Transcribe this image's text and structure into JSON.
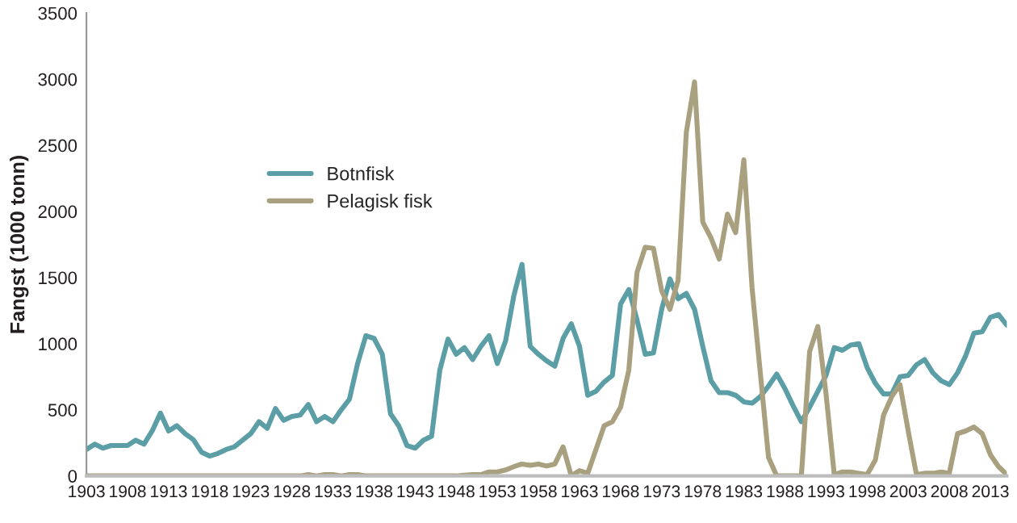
{
  "chart_data": {
    "type": "line",
    "ylabel": "Fangst (1000 tonn)",
    "x": [
      1903,
      1904,
      1905,
      1906,
      1907,
      1908,
      1909,
      1910,
      1911,
      1912,
      1913,
      1914,
      1915,
      1916,
      1917,
      1918,
      1919,
      1920,
      1921,
      1922,
      1923,
      1924,
      1925,
      1926,
      1927,
      1928,
      1929,
      1930,
      1931,
      1932,
      1933,
      1934,
      1935,
      1936,
      1937,
      1938,
      1939,
      1940,
      1941,
      1942,
      1943,
      1944,
      1945,
      1946,
      1947,
      1948,
      1949,
      1950,
      1951,
      1952,
      1953,
      1954,
      1955,
      1956,
      1957,
      1958,
      1959,
      1960,
      1961,
      1962,
      1963,
      1964,
      1965,
      1966,
      1967,
      1968,
      1969,
      1970,
      1971,
      1972,
      1973,
      1974,
      1975,
      1976,
      1977,
      1978,
      1979,
      1980,
      1981,
      1982,
      1983,
      1984,
      1985,
      1986,
      1987,
      1988,
      1989,
      1990,
      1991,
      1992,
      1993,
      1994,
      1995,
      1996,
      1997,
      1998,
      1999,
      2000,
      2001,
      2002,
      2003,
      2004,
      2005,
      2006,
      2007,
      2008,
      2009,
      2010,
      2011,
      2012,
      2013,
      2014,
      2015
    ],
    "series": [
      {
        "name": "Botnfisk",
        "color": "#5b9ea6",
        "values": [
          200,
          240,
          210,
          230,
          230,
          230,
          270,
          240,
          340,
          475,
          340,
          380,
          320,
          275,
          180,
          150,
          170,
          200,
          220,
          270,
          320,
          410,
          360,
          510,
          420,
          450,
          460,
          540,
          410,
          450,
          410,
          500,
          580,
          850,
          1060,
          1040,
          920,
          470,
          380,
          230,
          210,
          270,
          300,
          800,
          1035,
          920,
          970,
          880,
          980,
          1060,
          850,
          1020,
          1360,
          1600,
          980,
          920,
          870,
          830,
          1040,
          1150,
          980,
          610,
          640,
          710,
          760,
          1300,
          1410,
          1180,
          920,
          930,
          1260,
          1490,
          1340,
          1380,
          1260,
          980,
          720,
          630,
          630,
          610,
          560,
          550,
          600,
          680,
          770,
          660,
          530,
          410,
          520,
          640,
          760,
          970,
          950,
          990,
          1000,
          820,
          700,
          620,
          620,
          750,
          760,
          840,
          880,
          780,
          720,
          690,
          780,
          910,
          1080,
          1090,
          1200,
          1220,
          1140
        ]
      },
      {
        "name": "Pelagisk fisk",
        "color": "#a9a07f",
        "values": [
          0,
          0,
          0,
          0,
          0,
          0,
          0,
          0,
          0,
          0,
          0,
          0,
          0,
          0,
          0,
          0,
          0,
          0,
          0,
          0,
          0,
          0,
          0,
          0,
          0,
          0,
          0,
          10,
          0,
          10,
          10,
          0,
          10,
          10,
          0,
          0,
          0,
          0,
          0,
          0,
          0,
          0,
          0,
          0,
          0,
          0,
          5,
          10,
          10,
          30,
          30,
          45,
          70,
          90,
          80,
          90,
          75,
          90,
          220,
          0,
          40,
          20,
          200,
          380,
          410,
          520,
          800,
          1540,
          1730,
          1720,
          1400,
          1260,
          1480,
          2600,
          2980,
          1920,
          1800,
          1640,
          1980,
          1840,
          2390,
          1420,
          780,
          140,
          0,
          0,
          0,
          0,
          940,
          1130,
          620,
          10,
          30,
          30,
          20,
          10,
          120,
          460,
          600,
          690,
          340,
          10,
          20,
          20,
          30,
          20,
          320,
          340,
          370,
          320,
          160,
          70,
          10
        ]
      }
    ],
    "xlim": [
      1903,
      2015
    ],
    "xticks": [
      1903,
      1908,
      1913,
      1918,
      1923,
      1928,
      1933,
      1938,
      1943,
      1948,
      1953,
      1958,
      1963,
      1968,
      1973,
      1978,
      1983,
      1988,
      1993,
      1998,
      2003,
      2008,
      2013
    ],
    "ylim": [
      0,
      3500
    ],
    "yticks": [
      0,
      500,
      1000,
      1500,
      2000,
      2500,
      3000,
      3500
    ],
    "legend": "center left",
    "grid": false
  }
}
